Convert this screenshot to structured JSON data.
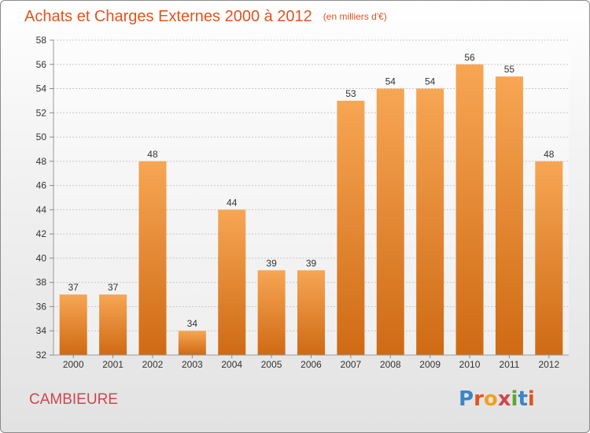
{
  "header": {
    "title": "Achats et Charges Externes 2000 à 2012",
    "unit": "(en milliers d'€)"
  },
  "footer": {
    "place": "CAMBIEURE",
    "logo": {
      "text": "Proxiti",
      "letters": [
        "P",
        "r",
        "o",
        "x",
        "i",
        "t",
        "i"
      ],
      "letter_colors": [
        "#3a86c8",
        "#e0541f",
        "#f0a020",
        "#d0464f",
        "#5aa832",
        "#3a86c8",
        "#e0541f"
      ]
    }
  },
  "colors": {
    "title": "#e0541f",
    "bar_top": "#f7a654",
    "bar_bottom": "#cf6a14",
    "place": "#d0464f"
  },
  "chart_data": {
    "type": "bar",
    "title": "Achats et Charges Externes 2000 à 2012",
    "subtitle": "(en milliers d'€)",
    "categories": [
      "2000",
      "2001",
      "2002",
      "2003",
      "2004",
      "2005",
      "2006",
      "2007",
      "2008",
      "2009",
      "2010",
      "2011",
      "2012"
    ],
    "values": [
      37,
      37,
      48,
      34,
      44,
      39,
      39,
      53,
      54,
      54,
      56,
      55,
      48
    ],
    "ylim": [
      32,
      58
    ],
    "yticks": [
      32,
      34,
      36,
      38,
      40,
      42,
      44,
      46,
      48,
      50,
      52,
      54,
      56,
      58
    ],
    "xlabel": "",
    "ylabel": "",
    "grid": true,
    "data_labels": true
  }
}
